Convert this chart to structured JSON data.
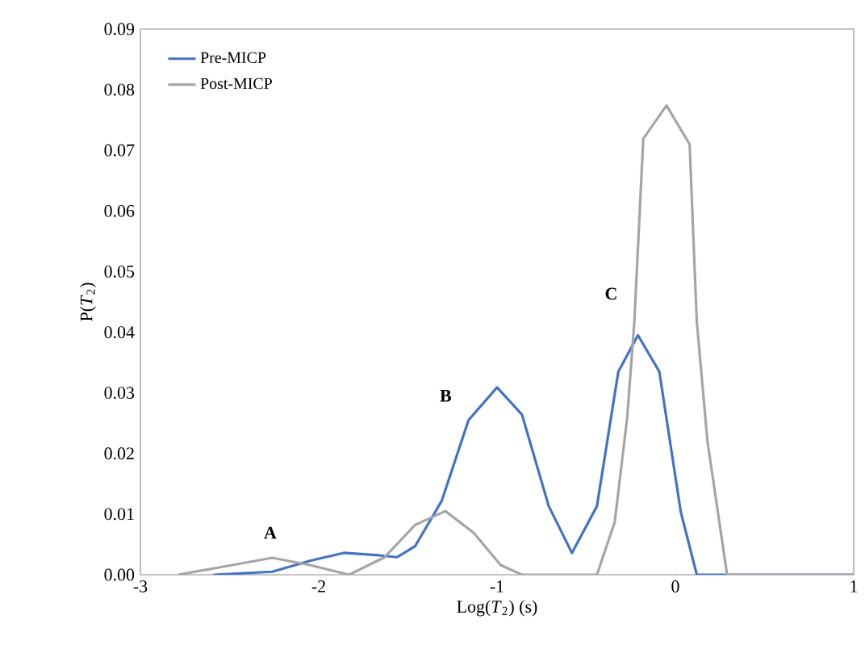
{
  "chart_data": {
    "type": "line",
    "xlabel": "Log(*T*$_{2}$) (s)",
    "ylabel": "P(*T*$_{2}$)",
    "xlim": [
      -3,
      1
    ],
    "ylim": [
      0,
      0.09
    ],
    "xticks": [
      -3,
      -2,
      -1,
      0,
      1
    ],
    "yticks": [
      {
        "value": 0,
        "label": "0.00"
      },
      {
        "value": 0.01,
        "label": "0.01"
      },
      {
        "value": 0.02,
        "label": "0.02"
      },
      {
        "value": 0.03,
        "label": "0.03"
      },
      {
        "value": 0.04,
        "label": "0.04"
      },
      {
        "value": 0.05,
        "label": "0.05"
      },
      {
        "value": 0.06,
        "label": "0.06"
      },
      {
        "value": 0.07,
        "label": "0.07"
      },
      {
        "value": 0.08,
        "label": "0.08"
      },
      {
        "value": 0.09,
        "label": "0.09"
      }
    ],
    "grid": false,
    "legend": "top left",
    "marker": "none",
    "line_style": "solid",
    "annotations": [
      "A",
      "B",
      "C"
    ],
    "series": [
      {
        "name": "Pre-MICP",
        "color": "#4472c4",
        "x": [
          -2.59,
          -2.26,
          -2.05,
          -1.86,
          -1.66,
          -1.56,
          -1.46,
          -1.31,
          -1.16,
          -1.0,
          -0.86,
          -0.71,
          -0.58,
          -0.44,
          -0.32,
          -0.21,
          -0.09,
          0.03,
          0.12,
          1.0
        ],
        "values": [
          0,
          0.0005,
          0.0023,
          0.0036,
          0.0032,
          0.0029,
          0.0047,
          0.0122,
          0.0255,
          0.0309,
          0.0264,
          0.0113,
          0.0036,
          0.0113,
          0.0335,
          0.0395,
          0.0335,
          0.0104,
          0,
          0
        ]
      },
      {
        "name": "Post-MICP",
        "color": "#a5a5a5",
        "x": [
          -2.79,
          -2.56,
          -2.26,
          -2.05,
          -1.83,
          -1.63,
          -1.46,
          -1.29,
          -1.13,
          -0.98,
          -0.86,
          -0.44,
          -0.34,
          -0.27,
          -0.23,
          -0.18,
          -0.05,
          0.08,
          0.12,
          0.18,
          0.29,
          1.0
        ],
        "values": [
          0,
          0.0012,
          0.0028,
          0.0016,
          0,
          0.0029,
          0.0082,
          0.0105,
          0.0069,
          0.0016,
          0,
          0,
          0.0087,
          0.026,
          0.0418,
          0.0719,
          0.0774,
          0.071,
          0.0418,
          0.022,
          0,
          0
        ]
      }
    ]
  }
}
